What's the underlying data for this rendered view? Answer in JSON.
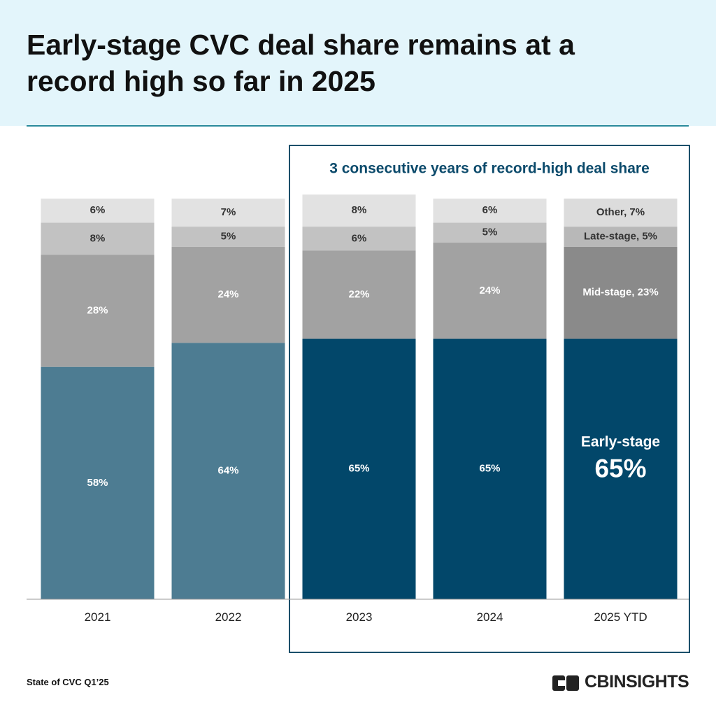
{
  "chart_data": {
    "type": "stacked_bar",
    "title": "Early-stage CVC deal share remains at a record high so far in 2025",
    "annotation": "3 consecutive years of record-high deal share",
    "categories": [
      "2021",
      "2022",
      "2023",
      "2024",
      "2025 YTD"
    ],
    "ylim": [
      0,
      100
    ],
    "series": [
      {
        "name": "Early-stage",
        "colors": [
          "#4d7c92",
          "#4d7c92",
          "#02476a",
          "#02476a",
          "#02476a"
        ],
        "values": [
          58,
          64,
          65,
          65,
          65
        ],
        "value_labels": [
          "58%",
          "64%",
          "65%",
          "65%",
          "65%"
        ]
      },
      {
        "name": "Mid-stage",
        "colors": [
          "#a2a2a2",
          "#a2a2a2",
          "#a2a2a2",
          "#a2a2a2",
          "#8a8a8a"
        ],
        "values": [
          28,
          24,
          22,
          24,
          23
        ],
        "value_labels": [
          "28%",
          "24%",
          "22%",
          "24%",
          "Mid-stage, 23%"
        ]
      },
      {
        "name": "Late-stage",
        "colors": [
          "#c2c2c2",
          "#c2c2c2",
          "#c2c2c2",
          "#c2c2c2",
          "#b8b8b8"
        ],
        "values": [
          8,
          5,
          6,
          5,
          5
        ],
        "value_labels": [
          "8%",
          "5%",
          "6%",
          "5%",
          "Late-stage, 5%"
        ]
      },
      {
        "name": "Other",
        "colors": [
          "#e2e2e2",
          "#e2e2e2",
          "#e2e2e2",
          "#e2e2e2",
          "#dcdcdc"
        ],
        "values": [
          6,
          7,
          8,
          6,
          7
        ],
        "value_labels": [
          "6%",
          "7%",
          "8%",
          "6%",
          "Other, 7%"
        ]
      }
    ]
  },
  "footer": {
    "source": "State of CVC Q1’25",
    "logo": "CBINSIGHTS"
  }
}
